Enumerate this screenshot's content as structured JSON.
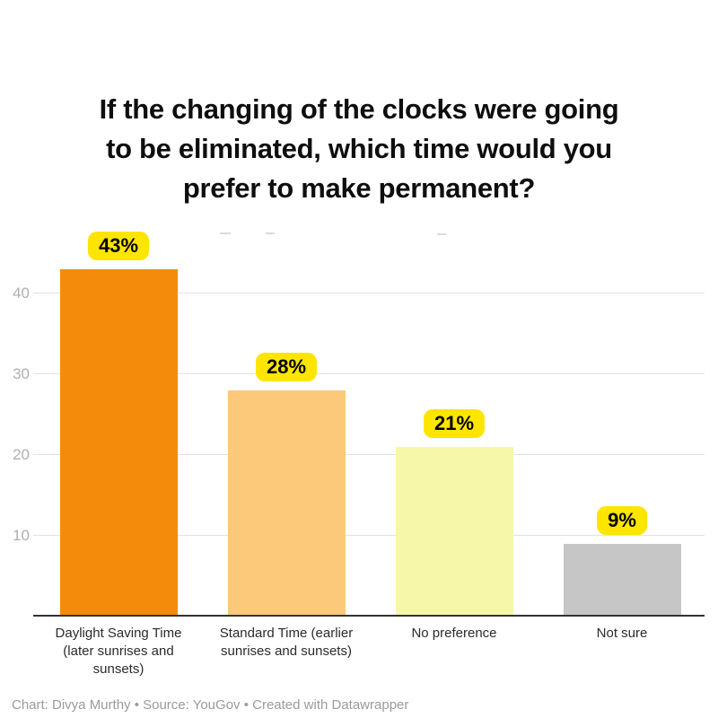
{
  "title": {
    "full": "If the changing of the clocks were going to be eliminated, which time would you prefer to make permanent?",
    "lines": [
      "If the changing of the clocks were going",
      "to be eliminated, which time would you",
      "prefer to make permanent?"
    ]
  },
  "y_axis": {
    "ticks": {
      "t40": "40",
      "t30": "30",
      "t20": "20",
      "t10": "10"
    }
  },
  "bars": [
    {
      "category": "Daylight Saving Time (later sunrises and sunsets)",
      "value": 43,
      "value_label": "43%",
      "color": "#f48b0a",
      "label_lines": {
        "l0": "Daylight Saving Time",
        "l1": "(later sunrises and",
        "l2": "sunsets)"
      }
    },
    {
      "category": "Standard Time (earlier sunrises and sunsets)",
      "value": 28,
      "value_label": "28%",
      "color": "#fcc97b",
      "label_lines": {
        "l0": "Standard Time (earlier",
        "l1": "sunrises and sunsets)"
      }
    },
    {
      "category": "No preference",
      "value": 21,
      "value_label": "21%",
      "color": "#f6f7a9",
      "label_lines": {
        "l0": "No preference"
      }
    },
    {
      "category": "Not sure",
      "value": 9,
      "value_label": "9%",
      "color": "#c6c6c6",
      "label_lines": {
        "l0": "Not sure"
      }
    }
  ],
  "colors": {
    "value_chip_bg": "#fde500",
    "value_chip_text": "#000000",
    "gridline": "#e2e2e2",
    "axis_line": "#323232",
    "tick_text": "#afafaf",
    "category_text": "#2b2b2b",
    "footer_text": "#9b9b9b",
    "title_text": "#0e0e0e",
    "background": "#ffffff"
  },
  "footer": {
    "text": "Chart: Divya Murthy • Source: YouGov • Created with Datawrapper"
  },
  "chart_data": {
    "type": "bar",
    "title": "If the changing of the clocks were going to be eliminated, which time would you prefer to make permanent?",
    "categories": [
      "Daylight Saving Time (later sunrises and sunsets)",
      "Standard Time (earlier sunrises and sunsets)",
      "No preference",
      "Not sure"
    ],
    "values": [
      43,
      28,
      21,
      9
    ],
    "data_labels": [
      "43%",
      "28%",
      "21%",
      "9%"
    ],
    "unit": "percent",
    "bar_colors": [
      "#f48b0a",
      "#fcc97b",
      "#f6f7a9",
      "#c6c6c6"
    ],
    "xlabel": "",
    "ylabel": "",
    "ylim": [
      0,
      45
    ],
    "yticks": [
      10,
      20,
      30,
      40
    ],
    "grid": "horizontal",
    "legend": "none",
    "footer": "Chart: Divya Murthy • Source: YouGov • Created with Datawrapper"
  }
}
